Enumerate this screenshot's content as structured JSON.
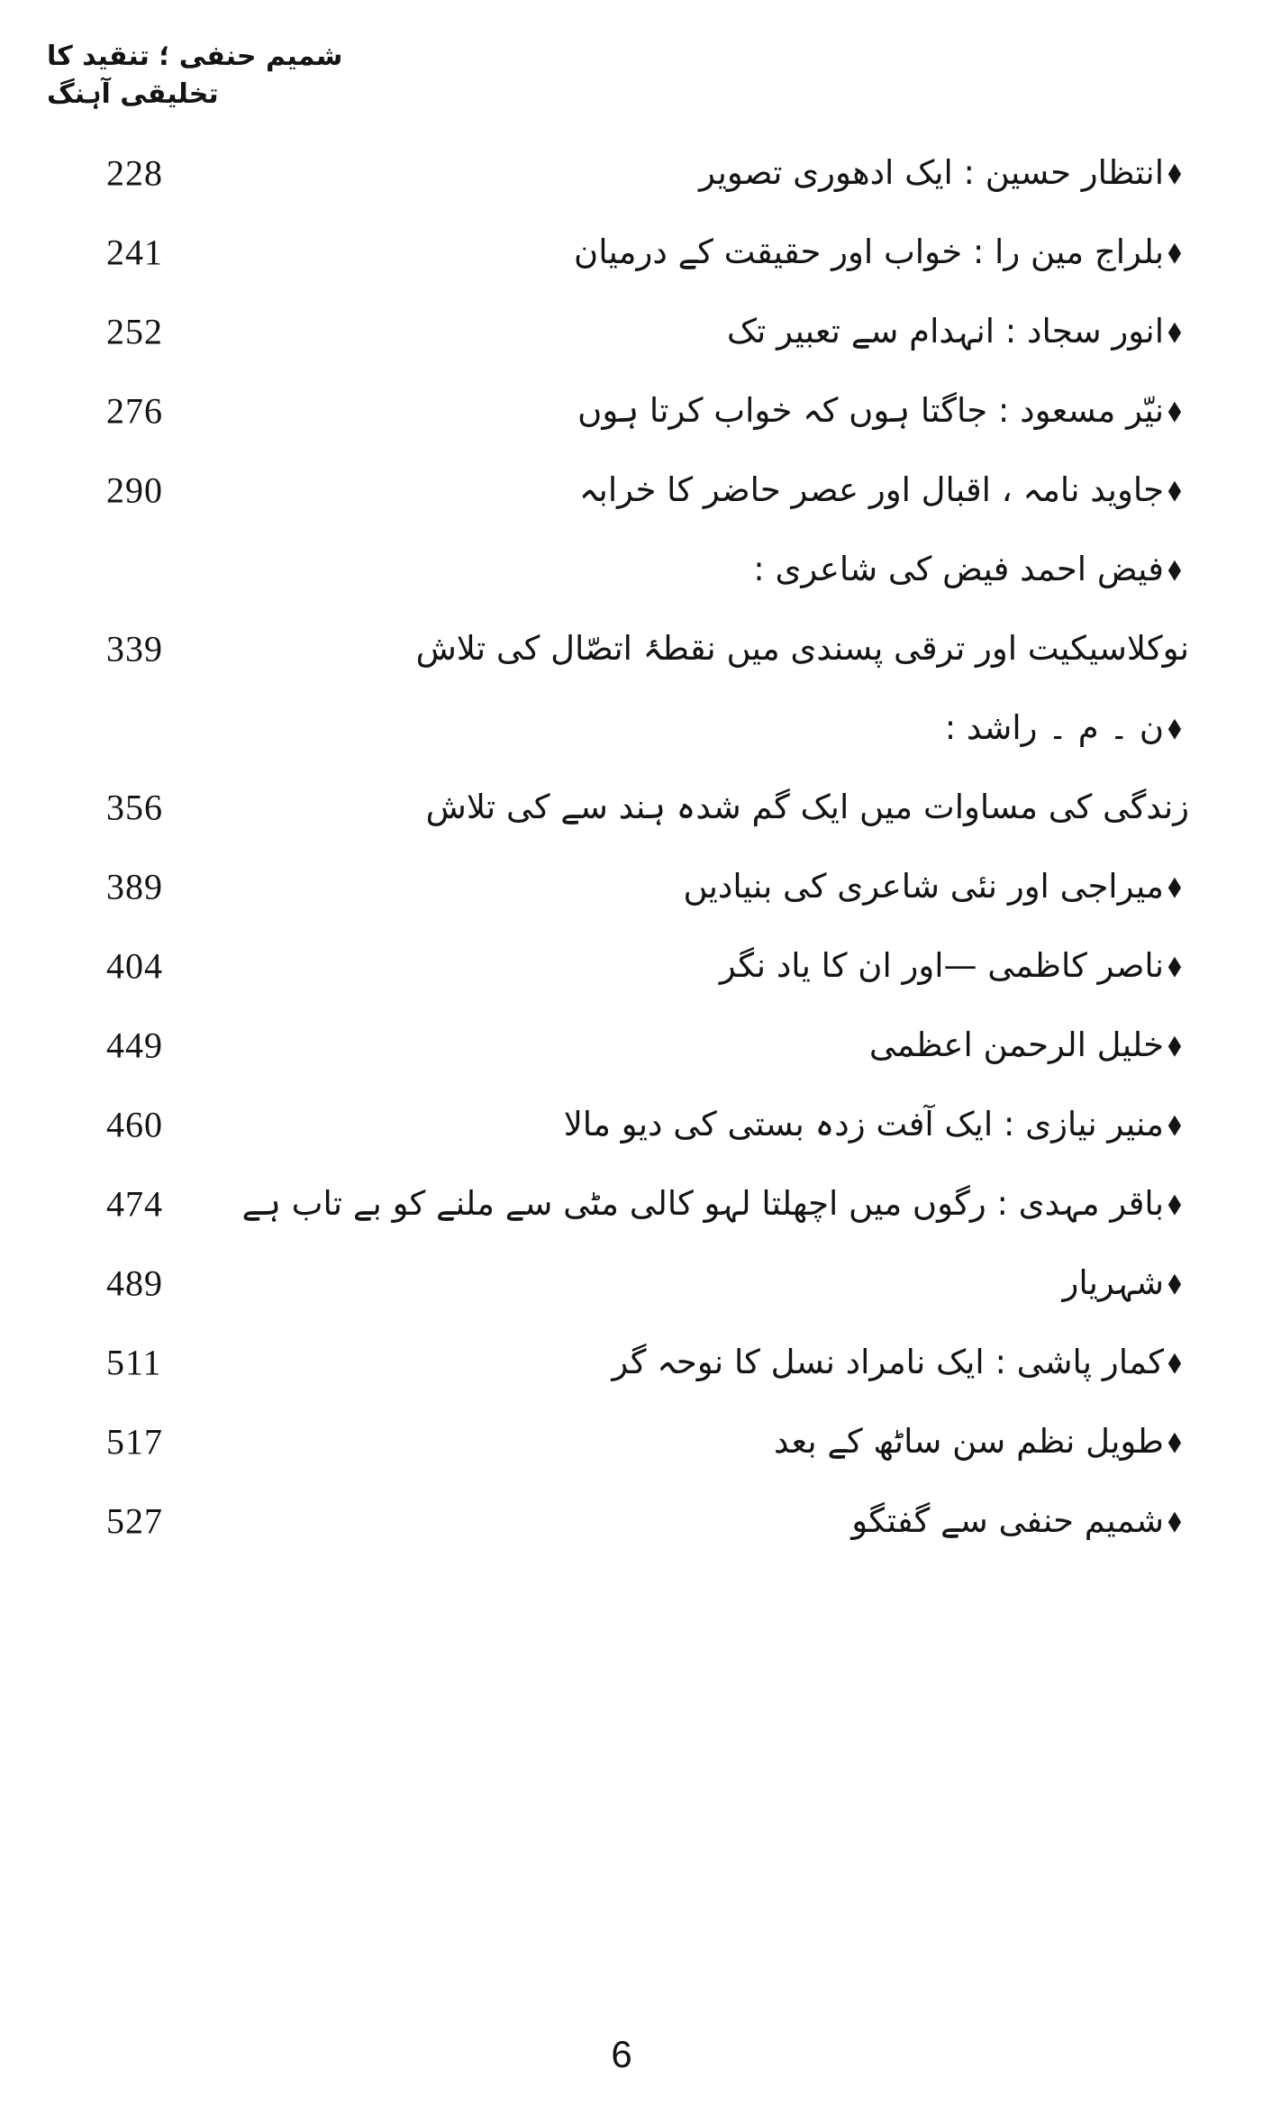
{
  "page": {
    "running_head": "شمیم حنفی ؛ تنقید کا تخلیقی آہنگ",
    "folio_number": "6"
  },
  "icons": {
    "bullet_glyph": "◆",
    "bullet_name": "diamond-bullet-icon"
  },
  "colors": {
    "ink": "#141414",
    "paper": "#ffffff"
  },
  "toc": {
    "entries": [
      {
        "title": "انتظار حسین : ایک ادھوری تصویر",
        "page": "228",
        "bullet": true
      },
      {
        "title": "بلراج مین را : خواب اور حقیقت کے درمیان",
        "page": "241",
        "bullet": true
      },
      {
        "title": "انور سجاد : انہدام سے تعبیر تک",
        "page": "252",
        "bullet": true
      },
      {
        "title": "نیّر مسعود : جاگتا ہوں کہ خواب کرتا ہوں",
        "page": "276",
        "bullet": true
      },
      {
        "title": "جاوید نامہ ، اقبال اور عصر حاضر کا خرابہ",
        "page": "290",
        "bullet": true
      },
      {
        "title": "فیض احمد فیض کی شاعری :",
        "page": "",
        "bullet": true
      },
      {
        "title": "نوکلاسیکیت اور ترقی پسندی میں نقطۂ اتصّال کی تلاش",
        "page": "339",
        "bullet": false
      },
      {
        "title": "ن ۔ م ۔ راشد :",
        "page": "",
        "bullet": true
      },
      {
        "title": "زندگی کی مساوات میں ایک گم شدہ ہند سے کی تلاش",
        "page": "356",
        "bullet": false
      },
      {
        "title": "میراجی اور نئی شاعری کی بنیادیں",
        "page": "389",
        "bullet": true
      },
      {
        "title": "ناصر کاظمی —اور ان کا یاد نگر",
        "page": "404",
        "bullet": true
      },
      {
        "title": "خلیل الرحمن اعظمی",
        "page": "449",
        "bullet": true
      },
      {
        "title": "منیر نیازی : ایک آفت زدہ بستی کی دیو مالا",
        "page": "460",
        "bullet": true
      },
      {
        "title": "باقر مہدی : رگوں میں اچھلتا لہو کالی مٹی سے ملنے کو بے تاب ہے",
        "page": "474",
        "bullet": true
      },
      {
        "title": "شہریار",
        "page": "489",
        "bullet": true
      },
      {
        "title": "کمار پاشی : ایک نامراد نسل کا نوحہ گر",
        "page": "511",
        "bullet": true
      },
      {
        "title": "طویل نظم سن ساٹھ کے بعد",
        "page": "517",
        "bullet": true
      },
      {
        "title": "شمیم حنفی سے گفتگو",
        "page": "527",
        "bullet": true
      }
    ]
  }
}
